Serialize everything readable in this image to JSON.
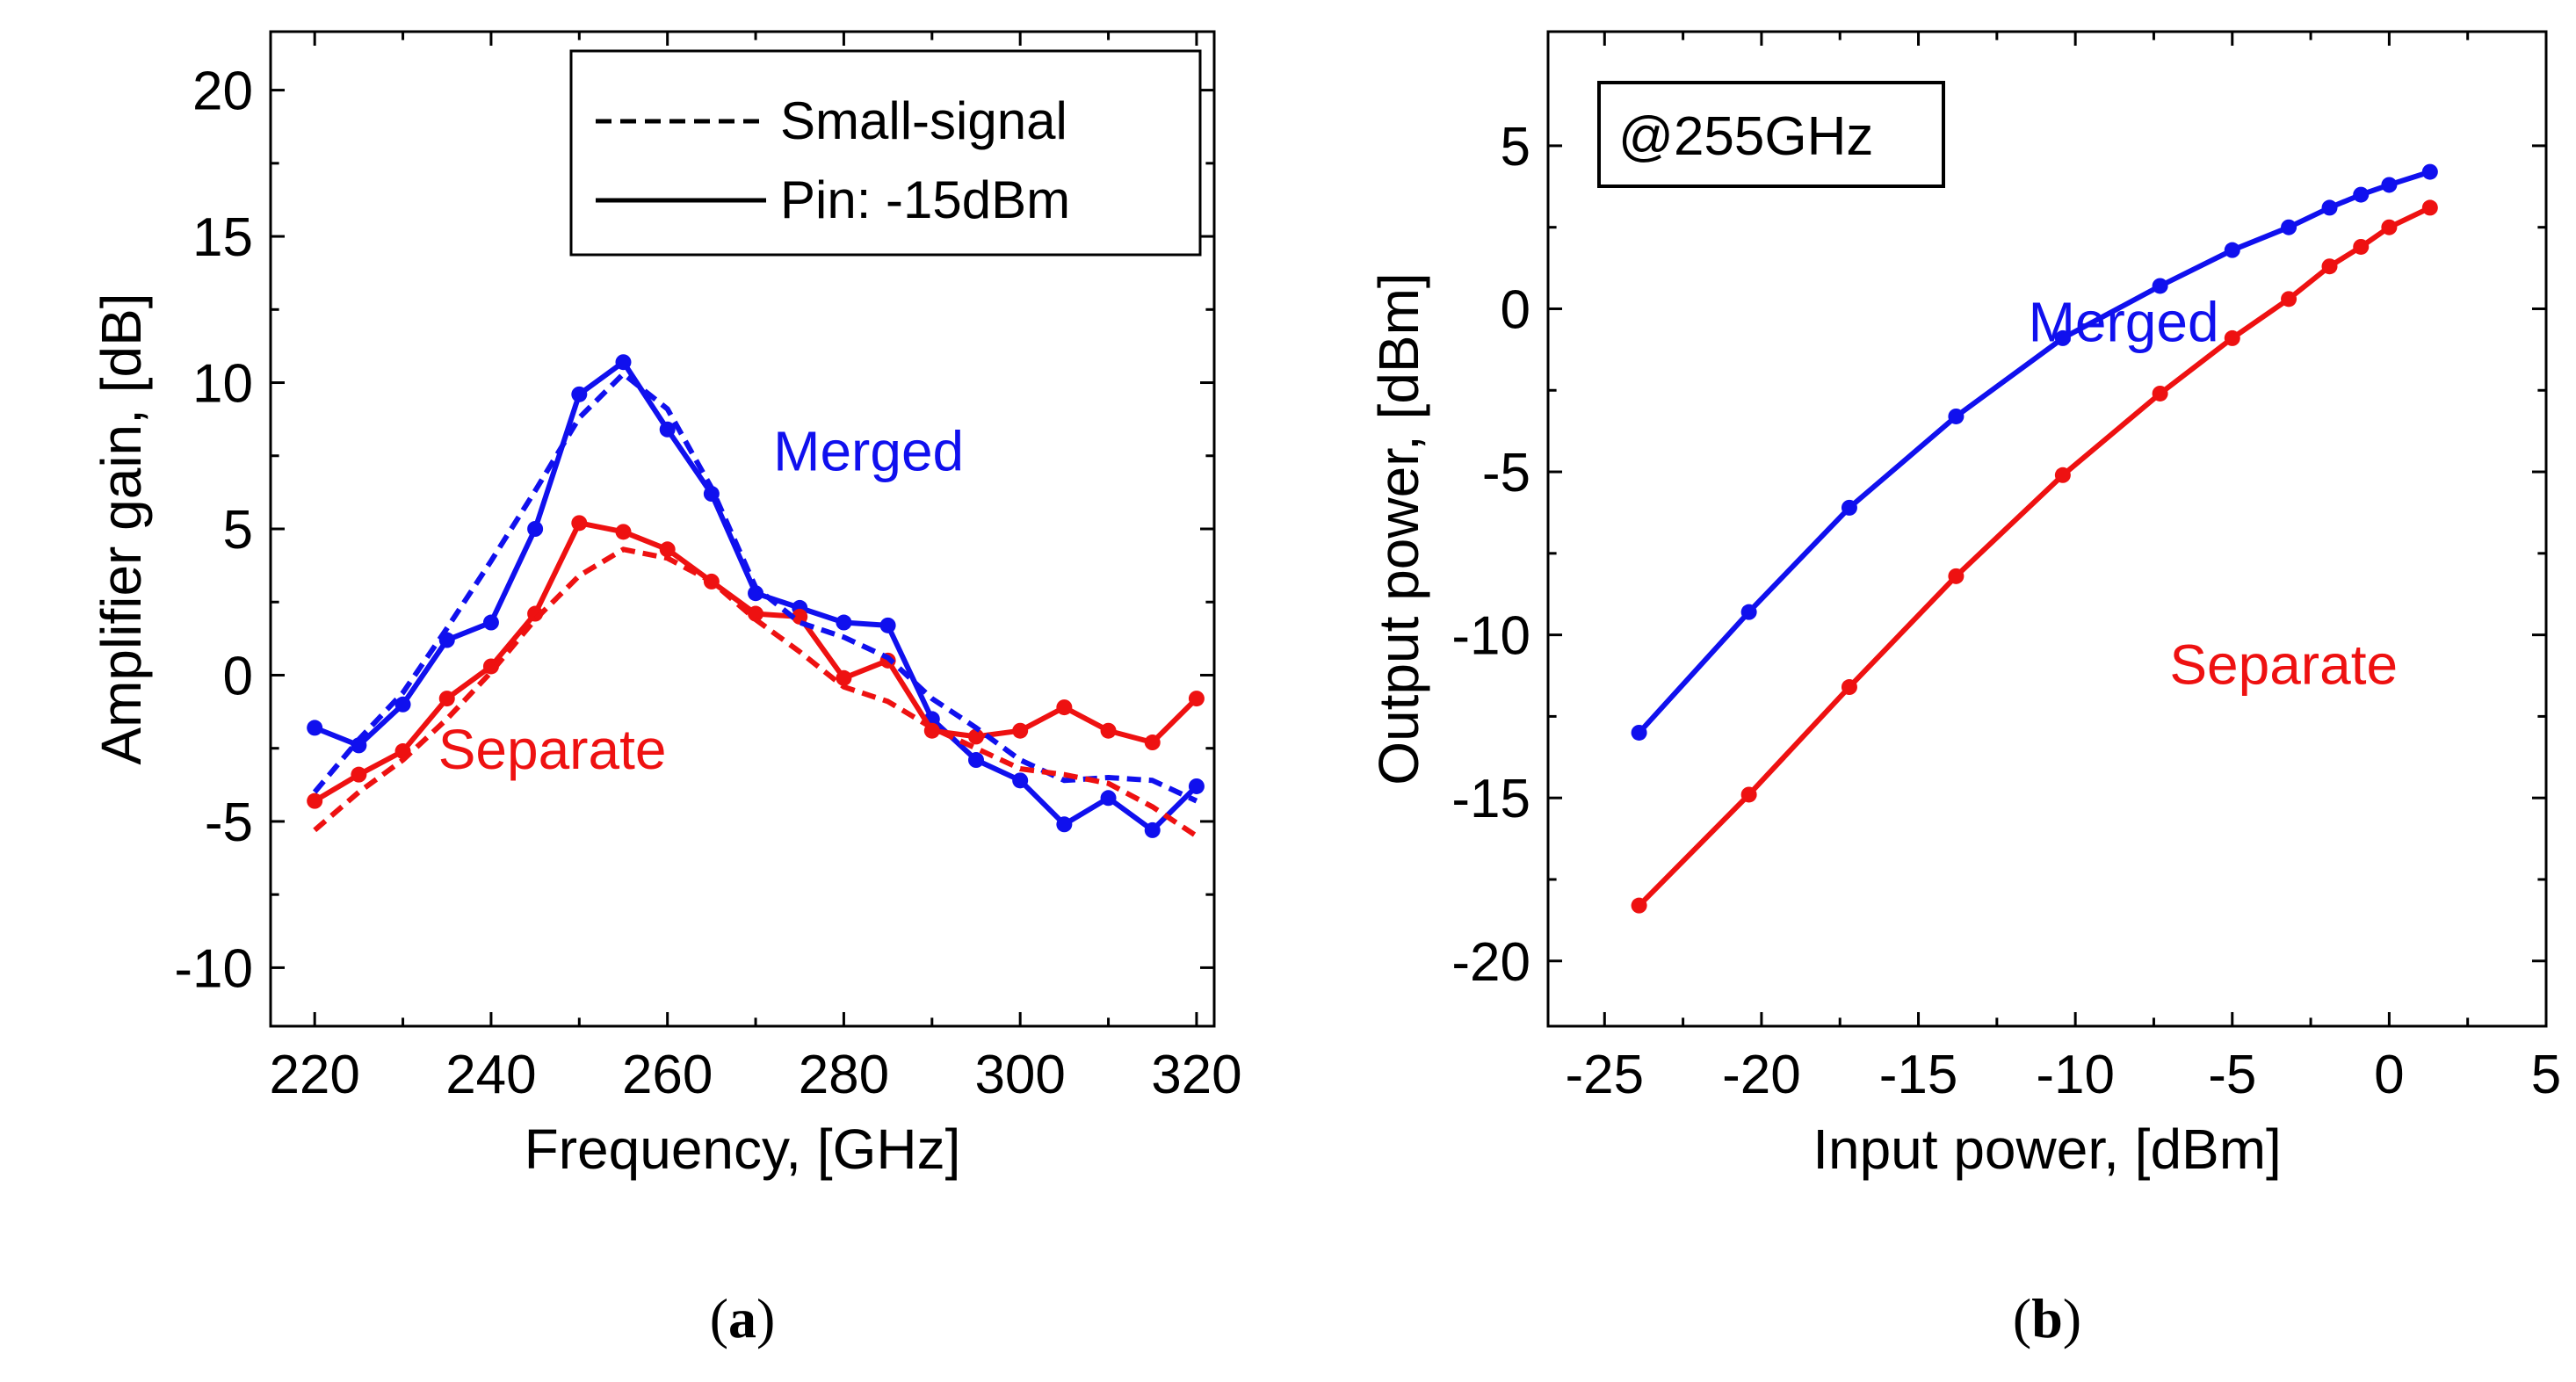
{
  "chart_data": [
    {
      "id": "a",
      "type": "line",
      "caption": "a",
      "xlabel": "Frequency, [GHz]",
      "ylabel": "Amplifier gain, [dB]",
      "xlim": [
        215,
        322
      ],
      "ylim": [
        -12,
        22
      ],
      "xticks": [
        220,
        240,
        260,
        280,
        300,
        320
      ],
      "yticks": [
        -10,
        -5,
        0,
        5,
        10,
        15,
        20
      ],
      "legend": {
        "position": "top-right",
        "entries": [
          {
            "label": "Small-signal",
            "style": "dashed"
          },
          {
            "label": "Pin: -15dBm",
            "style": "solid"
          }
        ]
      },
      "annotations": [
        {
          "text": "Merged",
          "color": "#1010ee",
          "x": 272,
          "y": 7
        },
        {
          "text": "Separate",
          "color": "#ee1111",
          "x": 234,
          "y": -3.2
        }
      ],
      "series": [
        {
          "name": "Merged Pin -15dBm",
          "color": "#1010ee",
          "style": "solid",
          "markers": true,
          "x": [
            220,
            225,
            230,
            235,
            240,
            245,
            250,
            255,
            260,
            265,
            270,
            275,
            280,
            285,
            290,
            295,
            300,
            305,
            310,
            315,
            320
          ],
          "y": [
            -1.8,
            -2.4,
            -1.0,
            1.2,
            1.8,
            5.0,
            9.6,
            10.7,
            8.4,
            6.2,
            2.8,
            2.3,
            1.8,
            1.7,
            -1.5,
            -2.9,
            -3.6,
            -5.1,
            -4.2,
            -5.3,
            -3.8
          ]
        },
        {
          "name": "Separate Pin -15dBm",
          "color": "#ee1111",
          "style": "solid",
          "markers": true,
          "x": [
            220,
            225,
            230,
            235,
            240,
            245,
            250,
            255,
            260,
            265,
            270,
            275,
            280,
            285,
            290,
            295,
            300,
            305,
            310,
            315,
            320
          ],
          "y": [
            -4.3,
            -3.4,
            -2.6,
            -0.8,
            0.3,
            2.1,
            5.2,
            4.9,
            4.3,
            3.2,
            2.1,
            2.0,
            -0.1,
            0.5,
            -1.9,
            -2.1,
            -1.9,
            -1.1,
            -1.9,
            -2.3,
            -0.8
          ]
        },
        {
          "name": "Merged small-signal",
          "color": "#1010ee",
          "style": "dashed",
          "markers": false,
          "x": [
            220,
            225,
            230,
            235,
            240,
            245,
            250,
            255,
            260,
            265,
            270,
            275,
            280,
            285,
            290,
            295,
            300,
            305,
            310,
            315,
            320
          ],
          "y": [
            -4.0,
            -2.2,
            -0.6,
            1.6,
            3.9,
            6.3,
            8.8,
            10.3,
            9.1,
            6.4,
            3.0,
            1.8,
            1.3,
            0.6,
            -0.8,
            -1.8,
            -2.9,
            -3.6,
            -3.5,
            -3.6,
            -4.3
          ]
        },
        {
          "name": "Separate small-signal",
          "color": "#ee1111",
          "style": "dashed",
          "markers": false,
          "x": [
            220,
            225,
            230,
            235,
            240,
            245,
            250,
            255,
            260,
            265,
            270,
            275,
            280,
            285,
            290,
            295,
            300,
            305,
            310,
            315,
            320
          ],
          "y": [
            -5.3,
            -4.0,
            -2.9,
            -1.5,
            0.1,
            1.9,
            3.4,
            4.3,
            4.0,
            3.2,
            1.9,
            0.8,
            -0.4,
            -0.9,
            -1.8,
            -2.5,
            -3.2,
            -3.4,
            -3.7,
            -4.5,
            -5.5
          ]
        }
      ]
    },
    {
      "id": "b",
      "type": "line",
      "caption": "b",
      "xlabel": "Input power, [dBm]",
      "ylabel": "Output power, [dBm]",
      "xlim": [
        -26.8,
        5
      ],
      "ylim": [
        -22,
        8.5
      ],
      "xticks": [
        -25,
        -20,
        -15,
        -10,
        -5,
        0,
        5
      ],
      "yticks": [
        -20,
        -15,
        -10,
        -5,
        0,
        5
      ],
      "annotation_box": "@255GHz",
      "annotations": [
        {
          "text": "Merged",
          "color": "#1010ee",
          "x": -11.5,
          "y": -1.0
        },
        {
          "text": "Separate",
          "color": "#ee1111",
          "x": -7.0,
          "y": -11.5
        }
      ],
      "series": [
        {
          "name": "Merged",
          "color": "#1010ee",
          "style": "solid",
          "markers": true,
          "x": [
            -23.9,
            -20.4,
            -17.2,
            -13.8,
            -10.4,
            -7.3,
            -5.0,
            -3.2,
            -1.9,
            -0.9,
            0.0,
            1.3
          ],
          "y": [
            -13.0,
            -9.3,
            -6.1,
            -3.3,
            -0.9,
            0.7,
            1.8,
            2.5,
            3.1,
            3.5,
            3.8,
            4.2
          ]
        },
        {
          "name": "Separate",
          "color": "#ee1111",
          "style": "solid",
          "markers": true,
          "x": [
            -23.9,
            -20.4,
            -17.2,
            -13.8,
            -10.4,
            -7.3,
            -5.0,
            -3.2,
            -1.9,
            -0.9,
            0.0,
            1.3
          ],
          "y": [
            -18.3,
            -14.9,
            -11.6,
            -8.2,
            -5.1,
            -2.6,
            -0.9,
            0.3,
            1.3,
            1.9,
            2.5,
            3.1
          ]
        }
      ]
    }
  ]
}
